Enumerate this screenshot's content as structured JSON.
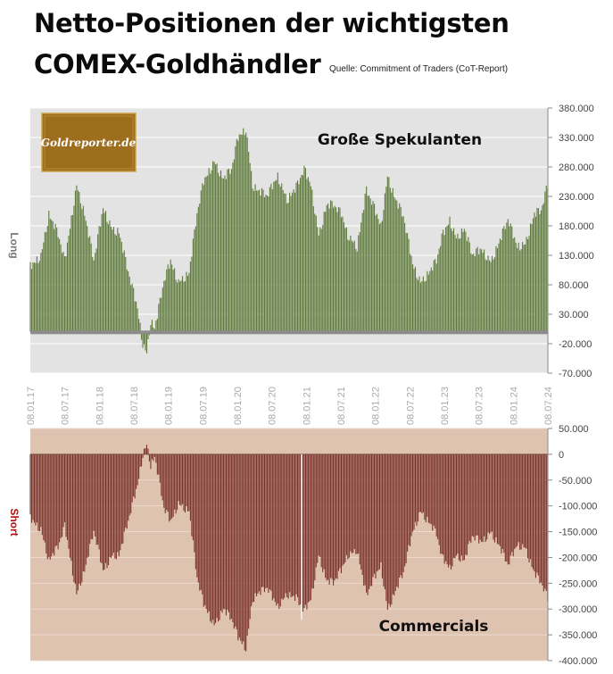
{
  "header": {
    "title_line1": "Netto-Positionen der wichtigsten",
    "title_line2": "COMEX-Goldhändler",
    "source": "Quelle: Commitment of Traders (CoT-Report)"
  },
  "logo": {
    "text": "Goldreporter.de"
  },
  "colors": {
    "long_bars": "#5e7a3a",
    "long_bg": "#e3e3e3",
    "short_bars": "#7a322c",
    "short_bg": "#dfc3b1",
    "short_axis_label": "#b01010",
    "long_axis_label": "#777777",
    "logo_bg": "#9c6e1e"
  },
  "chart_data": [
    {
      "type": "bar",
      "series_label": "Große Spekulanten",
      "side_label": "Long",
      "ylim": [
        -70000,
        380000
      ],
      "yticks": [
        "380.000",
        "330.000",
        "280.000",
        "230.000",
        "180.000",
        "130.000",
        "80.000",
        "30.000",
        "-20.000",
        "-70.000"
      ],
      "x_tick_labels": [
        "08.01.17",
        "08.07.17",
        "08.01.18",
        "08.07.18",
        "08.01.19",
        "08.07.19",
        "08.01.20",
        "08.07.20",
        "08.01.21",
        "08.07.21",
        "08.01.22",
        "08.07.22",
        "08.01.23",
        "08.07.23",
        "08.01.24",
        "08.07.24"
      ],
      "x_range": [
        "2017-01-08",
        "2024-07-08"
      ],
      "x_step_days": 7,
      "anchors": [
        [
          "2017-01-08",
          110000
        ],
        [
          "2017-03-05",
          130000
        ],
        [
          "2017-04-16",
          200000
        ],
        [
          "2017-06-04",
          165000
        ],
        [
          "2017-07-09",
          120000
        ],
        [
          "2017-09-10",
          250000
        ],
        [
          "2017-10-22",
          200000
        ],
        [
          "2017-12-10",
          120000
        ],
        [
          "2018-01-28",
          210000
        ],
        [
          "2018-03-18",
          175000
        ],
        [
          "2018-04-22",
          170000
        ],
        [
          "2018-06-03",
          110000
        ],
        [
          "2018-07-29",
          40000
        ],
        [
          "2018-08-26",
          -20000
        ],
        [
          "2018-09-16",
          -35000
        ],
        [
          "2018-10-07",
          20000
        ],
        [
          "2018-10-28",
          5000
        ],
        [
          "2018-12-16",
          85000
        ],
        [
          "2019-01-20",
          120000
        ],
        [
          "2019-03-03",
          85000
        ],
        [
          "2019-04-28",
          100000
        ],
        [
          "2019-06-09",
          200000
        ],
        [
          "2019-07-14",
          255000
        ],
        [
          "2019-09-08",
          290000
        ],
        [
          "2019-10-27",
          260000
        ],
        [
          "2019-12-08",
          275000
        ],
        [
          "2020-01-12",
          330000
        ],
        [
          "2020-02-23",
          345000
        ],
        [
          "2020-03-29",
          250000
        ],
        [
          "2020-04-26",
          240000
        ],
        [
          "2020-06-14",
          230000
        ],
        [
          "2020-08-09",
          265000
        ],
        [
          "2020-09-27",
          225000
        ],
        [
          "2020-11-15",
          245000
        ],
        [
          "2020-12-27",
          275000
        ],
        [
          "2021-01-31",
          250000
        ],
        [
          "2021-03-14",
          165000
        ],
        [
          "2021-04-25",
          215000
        ],
        [
          "2021-05-30",
          215000
        ],
        [
          "2021-07-11",
          200000
        ],
        [
          "2021-08-15",
          165000
        ],
        [
          "2021-10-03",
          145000
        ],
        [
          "2021-11-21",
          240000
        ],
        [
          "2021-12-26",
          215000
        ],
        [
          "2022-02-06",
          180000
        ],
        [
          "2022-03-13",
          265000
        ],
        [
          "2022-04-24",
          225000
        ],
        [
          "2022-06-05",
          195000
        ],
        [
          "2022-07-24",
          115000
        ],
        [
          "2022-09-04",
          85000
        ],
        [
          "2022-10-16",
          100000
        ],
        [
          "2022-11-27",
          120000
        ],
        [
          "2022-12-25",
          160000
        ],
        [
          "2023-02-05",
          190000
        ],
        [
          "2023-03-12",
          160000
        ],
        [
          "2023-04-23",
          175000
        ],
        [
          "2023-06-04",
          130000
        ],
        [
          "2023-07-23",
          140000
        ],
        [
          "2023-09-10",
          120000
        ],
        [
          "2023-10-22",
          150000
        ],
        [
          "2023-12-10",
          190000
        ],
        [
          "2024-01-28",
          145000
        ],
        [
          "2024-03-10",
          150000
        ],
        [
          "2024-04-28",
          200000
        ],
        [
          "2024-06-02",
          205000
        ],
        [
          "2024-07-08",
          250000
        ]
      ]
    },
    {
      "type": "bar",
      "series_label": "Commercials",
      "side_label": "Short",
      "ylim": [
        -400000,
        50000
      ],
      "yticks": [
        "50.000",
        "0",
        "-50.000",
        "-100.000",
        "-150.000",
        "-200.000",
        "-250.000",
        "-300.000",
        "-350.000",
        "-400.000"
      ],
      "x_range": [
        "2017-01-08",
        "2024-07-08"
      ],
      "x_step_days": 7,
      "anchors": [
        [
          "2017-01-08",
          -125000
        ],
        [
          "2017-03-05",
          -145000
        ],
        [
          "2017-04-16",
          -205000
        ],
        [
          "2017-06-04",
          -180000
        ],
        [
          "2017-07-09",
          -140000
        ],
        [
          "2017-09-10",
          -270000
        ],
        [
          "2017-10-22",
          -225000
        ],
        [
          "2017-12-10",
          -150000
        ],
        [
          "2018-01-28",
          -225000
        ],
        [
          "2018-03-18",
          -195000
        ],
        [
          "2018-04-22",
          -195000
        ],
        [
          "2018-06-03",
          -140000
        ],
        [
          "2018-07-29",
          -60000
        ],
        [
          "2018-08-26",
          0
        ],
        [
          "2018-09-16",
          20000
        ],
        [
          "2018-10-07",
          -20000
        ],
        [
          "2018-10-28",
          -5000
        ],
        [
          "2018-12-16",
          -105000
        ],
        [
          "2019-01-20",
          -130000
        ],
        [
          "2019-03-03",
          -95000
        ],
        [
          "2019-04-28",
          -110000
        ],
        [
          "2019-06-09",
          -240000
        ],
        [
          "2019-07-14",
          -290000
        ],
        [
          "2019-09-08",
          -330000
        ],
        [
          "2019-10-27",
          -300000
        ],
        [
          "2019-12-08",
          -320000
        ],
        [
          "2020-01-12",
          -355000
        ],
        [
          "2020-02-23",
          -375000
        ],
        [
          "2020-03-29",
          -280000
        ],
        [
          "2020-04-26",
          -270000
        ],
        [
          "2020-06-14",
          -260000
        ],
        [
          "2020-08-09",
          -295000
        ],
        [
          "2020-09-27",
          -270000
        ],
        [
          "2020-11-15",
          -280000
        ],
        [
          "2020-12-27",
          -305000
        ],
        [
          "2021-01-31",
          -280000
        ],
        [
          "2021-03-14",
          -195000
        ],
        [
          "2021-04-25",
          -245000
        ],
        [
          "2021-05-30",
          -250000
        ],
        [
          "2021-07-11",
          -225000
        ],
        [
          "2021-08-15",
          -195000
        ],
        [
          "2021-10-03",
          -185000
        ],
        [
          "2021-11-21",
          -275000
        ],
        [
          "2021-12-26",
          -245000
        ],
        [
          "2022-02-06",
          -215000
        ],
        [
          "2022-03-13",
          -300000
        ],
        [
          "2022-04-24",
          -265000
        ],
        [
          "2022-06-05",
          -230000
        ],
        [
          "2022-07-24",
          -150000
        ],
        [
          "2022-09-04",
          -110000
        ],
        [
          "2022-10-16",
          -130000
        ],
        [
          "2022-11-27",
          -155000
        ],
        [
          "2022-12-25",
          -200000
        ],
        [
          "2023-02-05",
          -220000
        ],
        [
          "2023-03-12",
          -195000
        ],
        [
          "2023-04-23",
          -205000
        ],
        [
          "2023-06-04",
          -160000
        ],
        [
          "2023-07-23",
          -170000
        ],
        [
          "2023-09-10",
          -150000
        ],
        [
          "2023-10-22",
          -175000
        ],
        [
          "2023-12-10",
          -215000
        ],
        [
          "2024-01-28",
          -175000
        ],
        [
          "2024-03-10",
          -180000
        ],
        [
          "2024-04-28",
          -230000
        ],
        [
          "2024-06-02",
          -250000
        ],
        [
          "2024-07-08",
          -280000
        ]
      ]
    }
  ]
}
